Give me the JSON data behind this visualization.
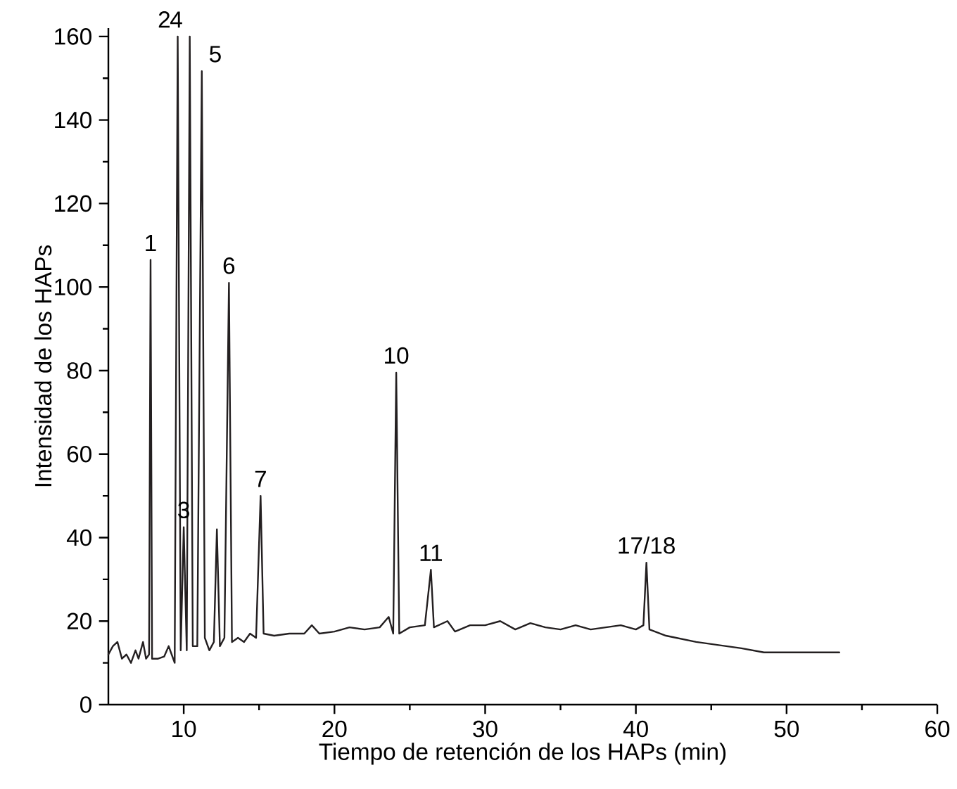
{
  "chart_data": {
    "type": "line",
    "xlabel": "Tiempo de retención de los HAPs (min)",
    "ylabel": "Intensidad de los HAPs",
    "xlim": [
      5,
      60
    ],
    "xticks": [
      10,
      20,
      30,
      40,
      50,
      60
    ],
    "ylim": [
      0,
      162
    ],
    "yticks": [
      0,
      20,
      40,
      60,
      80,
      100,
      120,
      140,
      160
    ],
    "series": [
      {
        "color": "#231f20",
        "x": [
          5.0,
          5.3,
          5.6,
          5.9,
          6.2,
          6.5,
          6.8,
          7.0,
          7.3,
          7.5,
          7.7,
          7.8,
          7.9,
          8.3,
          8.7,
          9.0,
          9.2,
          9.4,
          9.6,
          9.8,
          10.0,
          10.2,
          10.4,
          10.6,
          10.9,
          11.2,
          11.4,
          11.7,
          12.0,
          12.2,
          12.4,
          12.7,
          13.0,
          13.2,
          13.6,
          14.0,
          14.4,
          14.8,
          15.1,
          15.3,
          16,
          17,
          18,
          18.5,
          19,
          20,
          21,
          22,
          23,
          23.6,
          23.9,
          24.1,
          24.3,
          25,
          26,
          26.4,
          26.6,
          27.5,
          28,
          29,
          30,
          31,
          32,
          33,
          34,
          35,
          36,
          37,
          38,
          39,
          40,
          40.5,
          40.7,
          40.9,
          42,
          44,
          46,
          47,
          48.5,
          50,
          53.5
        ],
        "values": [
          12,
          14,
          15,
          11,
          12,
          10,
          13,
          11,
          15,
          11,
          12,
          106.5,
          11,
          11,
          11.5,
          14,
          12,
          10,
          160,
          13,
          42.5,
          13,
          160,
          14,
          14,
          151.7,
          16,
          13,
          15,
          42,
          14,
          16,
          101,
          15,
          16,
          15,
          17,
          16,
          50,
          17,
          16.5,
          17,
          17,
          19,
          17,
          17.5,
          18.5,
          18,
          18.5,
          21,
          17,
          79.5,
          17,
          18.5,
          19,
          32.3,
          18.5,
          20,
          17.5,
          19,
          19,
          20,
          18,
          19.5,
          18.5,
          18,
          19,
          18,
          18.5,
          19,
          18,
          19,
          34,
          18,
          16.5,
          15,
          14,
          13.5,
          12.5,
          12.5,
          12.5
        ]
      }
    ],
    "annotations": [
      {
        "text": "1",
        "x": 7.8,
        "y": 106.5
      },
      {
        "text": "2",
        "x": 9.6,
        "y": 160
      },
      {
        "text": "3",
        "x": 10.0,
        "y": 42.5
      },
      {
        "text": "4",
        "x": 10.4,
        "y": 160
      },
      {
        "text": "5",
        "x": 11.2,
        "y": 151.7
      },
      {
        "text": "6",
        "x": 13.0,
        "y": 101
      },
      {
        "text": "7",
        "x": 15.1,
        "y": 50
      },
      {
        "text": "10",
        "x": 24.1,
        "y": 79.5
      },
      {
        "text": "11",
        "x": 26.4,
        "y": 32.3
      },
      {
        "text": "17/18",
        "x": 40.7,
        "y": 34
      }
    ]
  }
}
